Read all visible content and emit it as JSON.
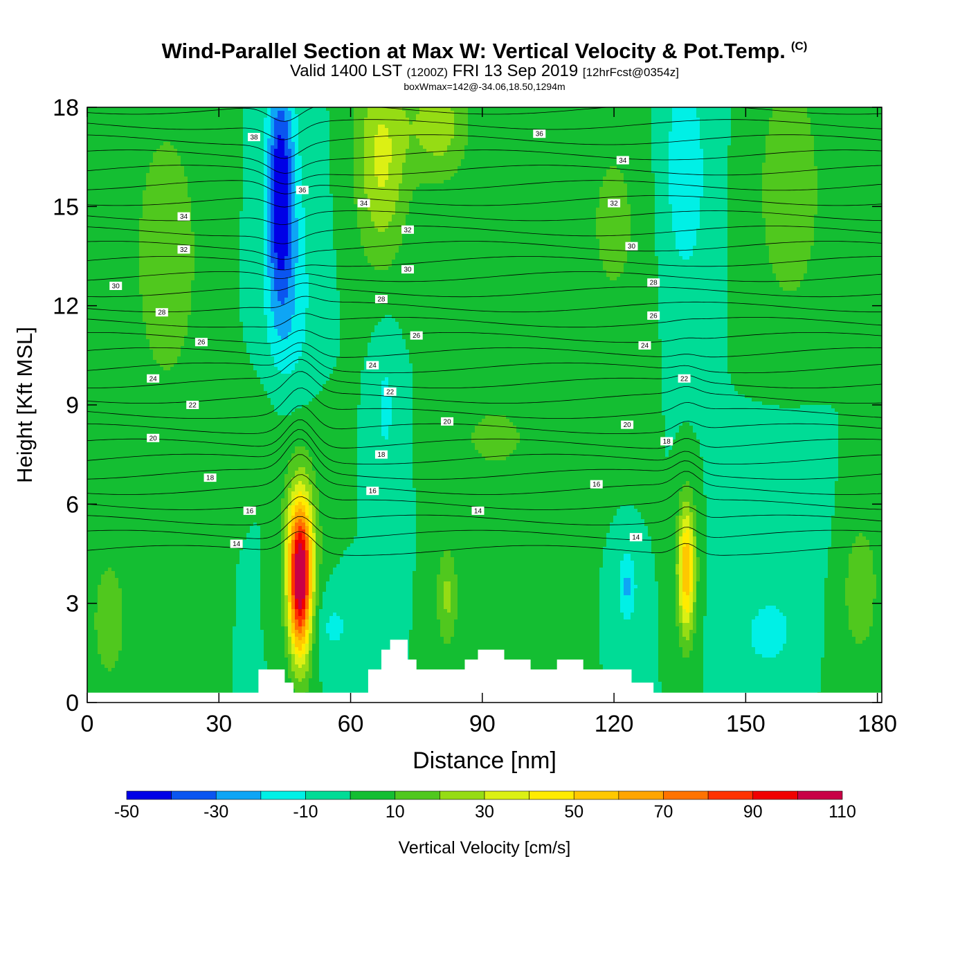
{
  "title": {
    "main": "Wind-Parallel Section at Max W: Vertical Velocity & Pot.Temp.",
    "copyright": "(C)",
    "valid_prefix": "Valid 1400 LST",
    "valid_utc": "(1200Z)",
    "valid_date": "FRI 13 Sep 2019",
    "forecast": "[12hrFcst@0354z]",
    "boxwmax": "boxWmax=142@-34.06,18.50,1294m"
  },
  "chart_data": {
    "type": "heatmap",
    "xlabel": "Distance [nm]",
    "ylabel": "Height [Kft MSL]",
    "xlim": [
      0,
      181
    ],
    "ylim": [
      0,
      18
    ],
    "xticks": [
      0,
      30,
      60,
      90,
      120,
      150,
      180
    ],
    "yticks": [
      0,
      3,
      6,
      9,
      12,
      15,
      18
    ],
    "colorbar": {
      "label": "Vertical Velocity [cm/s]",
      "levels": [
        -50,
        -40,
        -30,
        -20,
        -10,
        0,
        10,
        20,
        30,
        40,
        50,
        60,
        70,
        80,
        90,
        100,
        110
      ],
      "tick_labels": [
        "-50",
        "-30",
        "-10",
        "10",
        "30",
        "50",
        "70",
        "90",
        "110"
      ],
      "colors": [
        "#0000e6",
        "#0a55f0",
        "#0ea5f5",
        "#00f0e6",
        "#00dc96",
        "#14be32",
        "#50c81e",
        "#96dc14",
        "#dcf014",
        "#ffeb00",
        "#ffc800",
        "#ffa500",
        "#ff7300",
        "#ff3200",
        "#f00000",
        "#c80046"
      ]
    },
    "contour_field": "Potential temperature",
    "isentrope_levels": [
      14,
      16,
      18,
      20,
      22,
      24,
      26,
      28,
      30,
      32,
      34,
      36,
      38
    ],
    "contour_labels": [
      {
        "x": 38,
        "y": 17.1,
        "text": "38"
      },
      {
        "x": 49,
        "y": 15.5,
        "text": "36"
      },
      {
        "x": 103,
        "y": 17.2,
        "text": "36"
      },
      {
        "x": 22,
        "y": 14.7,
        "text": "34"
      },
      {
        "x": 63,
        "y": 15.1,
        "text": "34"
      },
      {
        "x": 122,
        "y": 16.4,
        "text": "34"
      },
      {
        "x": 22,
        "y": 13.7,
        "text": "32"
      },
      {
        "x": 73,
        "y": 14.3,
        "text": "32"
      },
      {
        "x": 120,
        "y": 15.1,
        "text": "32"
      },
      {
        "x": 6.5,
        "y": 12.6,
        "text": "30"
      },
      {
        "x": 73,
        "y": 13.1,
        "text": "30"
      },
      {
        "x": 124,
        "y": 13.8,
        "text": "30"
      },
      {
        "x": 17,
        "y": 11.8,
        "text": "28"
      },
      {
        "x": 67,
        "y": 12.2,
        "text": "28"
      },
      {
        "x": 129,
        "y": 12.7,
        "text": "28"
      },
      {
        "x": 26,
        "y": 10.9,
        "text": "26"
      },
      {
        "x": 75,
        "y": 11.1,
        "text": "26"
      },
      {
        "x": 129,
        "y": 11.7,
        "text": "26"
      },
      {
        "x": 15,
        "y": 9.8,
        "text": "24"
      },
      {
        "x": 65,
        "y": 10.2,
        "text": "24"
      },
      {
        "x": 127,
        "y": 10.8,
        "text": "24"
      },
      {
        "x": 24,
        "y": 9.0,
        "text": "22"
      },
      {
        "x": 69,
        "y": 9.4,
        "text": "22"
      },
      {
        "x": 136,
        "y": 9.8,
        "text": "22"
      },
      {
        "x": 15,
        "y": 8.0,
        "text": "20"
      },
      {
        "x": 82,
        "y": 8.5,
        "text": "20"
      },
      {
        "x": 123,
        "y": 8.4,
        "text": "20"
      },
      {
        "x": 28,
        "y": 6.8,
        "text": "18"
      },
      {
        "x": 67,
        "y": 7.5,
        "text": "18"
      },
      {
        "x": 132,
        "y": 7.9,
        "text": "18"
      },
      {
        "x": 37,
        "y": 5.8,
        "text": "16"
      },
      {
        "x": 65,
        "y": 6.4,
        "text": "16"
      },
      {
        "x": 116,
        "y": 6.6,
        "text": "16"
      },
      {
        "x": 34,
        "y": 4.8,
        "text": "14"
      },
      {
        "x": 89,
        "y": 5.8,
        "text": "14"
      },
      {
        "x": 125,
        "y": 5.0,
        "text": "14"
      }
    ],
    "terrain": [
      [
        0,
        0.3
      ],
      [
        39,
        0.3
      ],
      [
        39,
        1.0
      ],
      [
        45,
        1.0
      ],
      [
        45,
        0.6
      ],
      [
        47,
        0.6
      ],
      [
        47,
        0.3
      ],
      [
        64,
        0.3
      ],
      [
        64,
        1.0
      ],
      [
        67,
        1.0
      ],
      [
        67,
        1.6
      ],
      [
        69,
        1.6
      ],
      [
        69,
        1.9
      ],
      [
        73,
        1.9
      ],
      [
        73,
        1.3
      ],
      [
        75,
        1.3
      ],
      [
        75,
        1.0
      ],
      [
        86,
        1.0
      ],
      [
        86,
        1.3
      ],
      [
        89,
        1.3
      ],
      [
        89,
        1.6
      ],
      [
        95,
        1.6
      ],
      [
        95,
        1.3
      ],
      [
        101,
        1.3
      ],
      [
        101,
        1.0
      ],
      [
        107,
        1.0
      ],
      [
        107,
        1.3
      ],
      [
        113,
        1.3
      ],
      [
        113,
        1.0
      ],
      [
        124,
        1.0
      ],
      [
        124,
        0.6
      ],
      [
        129,
        0.6
      ],
      [
        129,
        0.3
      ],
      [
        181,
        0.3
      ]
    ],
    "updraft_cores": [
      {
        "x": 48.5,
        "bottom": 0.4,
        "top": 7.1,
        "max": 142
      },
      {
        "x": 136.5,
        "bottom": 1.0,
        "top": 6.6,
        "max": 60
      }
    ],
    "downdraft_core": {
      "x": 44,
      "top": 18,
      "bottom": 11.0,
      "min": -45
    }
  }
}
